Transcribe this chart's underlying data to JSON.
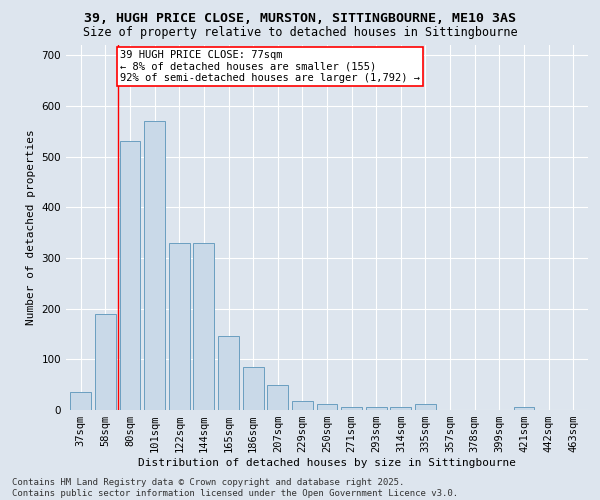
{
  "title": "39, HUGH PRICE CLOSE, MURSTON, SITTINGBOURNE, ME10 3AS",
  "subtitle": "Size of property relative to detached houses in Sittingbourne",
  "xlabel": "Distribution of detached houses by size in Sittingbourne",
  "ylabel": "Number of detached properties",
  "categories": [
    "37sqm",
    "58sqm",
    "80sqm",
    "101sqm",
    "122sqm",
    "144sqm",
    "165sqm",
    "186sqm",
    "207sqm",
    "229sqm",
    "250sqm",
    "271sqm",
    "293sqm",
    "314sqm",
    "335sqm",
    "357sqm",
    "378sqm",
    "399sqm",
    "421sqm",
    "442sqm",
    "463sqm"
  ],
  "values": [
    35,
    190,
    530,
    570,
    330,
    330,
    145,
    85,
    50,
    18,
    12,
    5,
    5,
    5,
    12,
    0,
    0,
    0,
    5,
    0,
    0
  ],
  "bar_color": "#c9d9e8",
  "bar_edge_color": "#6a9fc0",
  "vline_pos": 1.5,
  "annotation_text": "39 HUGH PRICE CLOSE: 77sqm\n← 8% of detached houses are smaller (155)\n92% of semi-detached houses are larger (1,792) →",
  "ylim": [
    0,
    720
  ],
  "yticks": [
    0,
    100,
    200,
    300,
    400,
    500,
    600,
    700
  ],
  "background_color": "#dde5ee",
  "plot_background": "#dde5ee",
  "footer": "Contains HM Land Registry data © Crown copyright and database right 2025.\nContains public sector information licensed under the Open Government Licence v3.0.",
  "title_fontsize": 9.5,
  "subtitle_fontsize": 8.5,
  "axis_label_fontsize": 8,
  "tick_fontsize": 7.5,
  "footer_fontsize": 6.5,
  "annotation_fontsize": 7.5
}
